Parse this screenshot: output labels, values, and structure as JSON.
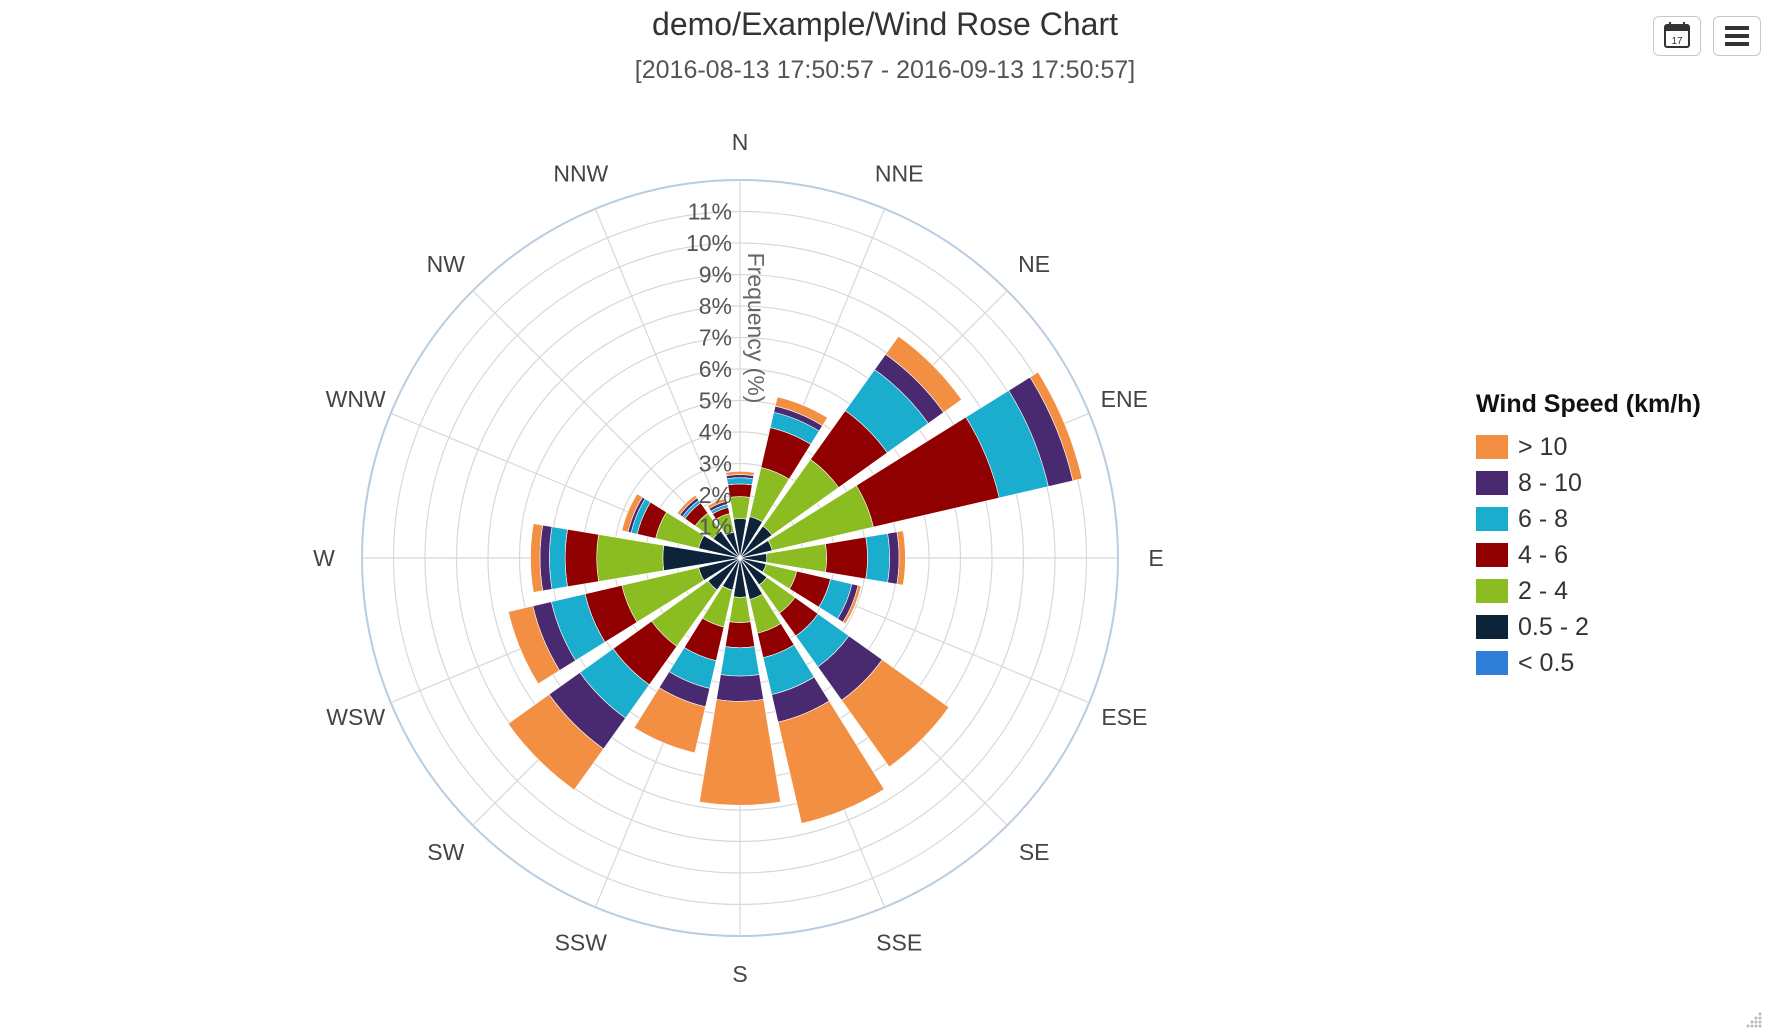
{
  "header": {
    "title": "demo/Example/Wind Rose Chart",
    "subtitle": "[2016-08-13 17:50:57 - 2016-09-13 17:50:57]"
  },
  "toolbar": {
    "calendar_icon": "calendar-icon",
    "calendar_day": "17",
    "menu_icon": "hamburger-menu-icon"
  },
  "chart_data": {
    "type": "polar-stacked-bar",
    "axis_title": "Frequency (%)",
    "directions": [
      "N",
      "NNE",
      "NE",
      "ENE",
      "E",
      "ESE",
      "SE",
      "SSE",
      "S",
      "SSW",
      "SW",
      "WSW",
      "W",
      "WNW",
      "NW",
      "NNW"
    ],
    "radial_ticks": [
      "1%",
      "2%",
      "3%",
      "4%",
      "5%",
      "6%",
      "7%",
      "8%",
      "9%",
      "10%",
      "11%"
    ],
    "rmax": 12,
    "legend_title": "Wind Speed (km/h)",
    "legend_placement": "right",
    "series": [
      {
        "name": "< 0.5",
        "color": "#2f7ed8",
        "values": [
          0.05,
          0.05,
          0.05,
          0.05,
          0.05,
          0.05,
          0.05,
          0.05,
          0.05,
          0.05,
          0.05,
          0.05,
          0.05,
          0.05,
          0.05,
          0.05
        ]
      },
      {
        "name": "0.5 - 2",
        "color": "#0d233a",
        "values": [
          1.2,
          1.3,
          1.2,
          1.0,
          0.8,
          0.8,
          1.0,
          1.3,
          1.2,
          1.0,
          1.2,
          1.3,
          2.4,
          1.3,
          1.0,
          0.8
        ]
      },
      {
        "name": "2 - 4",
        "color": "#8bbc21",
        "values": [
          0.7,
          1.6,
          2.6,
          3.3,
          1.9,
          1.0,
          1.1,
          1.1,
          0.8,
          1.2,
          2.2,
          2.5,
          2.1,
          1.4,
          0.7,
          0.6
        ]
      },
      {
        "name": "4 - 6",
        "color": "#910000",
        "values": [
          0.4,
          1.3,
          1.9,
          4.1,
          1.3,
          1.1,
          0.9,
          0.8,
          0.8,
          1.1,
          1.5,
          1.2,
          1.0,
          0.6,
          0.4,
          0.2
        ]
      },
      {
        "name": "6 - 8",
        "color": "#1aadce",
        "values": [
          0.2,
          0.5,
          1.6,
          1.6,
          0.7,
          0.7,
          1.2,
          1.2,
          0.9,
          0.9,
          1.3,
          1.1,
          0.5,
          0.2,
          0.1,
          0.1
        ]
      },
      {
        "name": "8 - 10",
        "color": "#492970",
        "values": [
          0.1,
          0.2,
          0.6,
          0.8,
          0.3,
          0.2,
          1.3,
          0.9,
          0.8,
          0.6,
          1.2,
          0.6,
          0.3,
          0.1,
          0.1,
          0.1
        ]
      },
      {
        "name": "> 10",
        "color": "#f28f43",
        "values": [
          0.1,
          0.3,
          0.7,
          0.3,
          0.2,
          0.1,
          2.6,
          3.3,
          3.3,
          1.5,
          1.6,
          0.8,
          0.3,
          0.2,
          0.1,
          0.1
        ]
      }
    ]
  },
  "grid_color": "#d8d8d8",
  "outer_ring_color": "#b8cde0"
}
